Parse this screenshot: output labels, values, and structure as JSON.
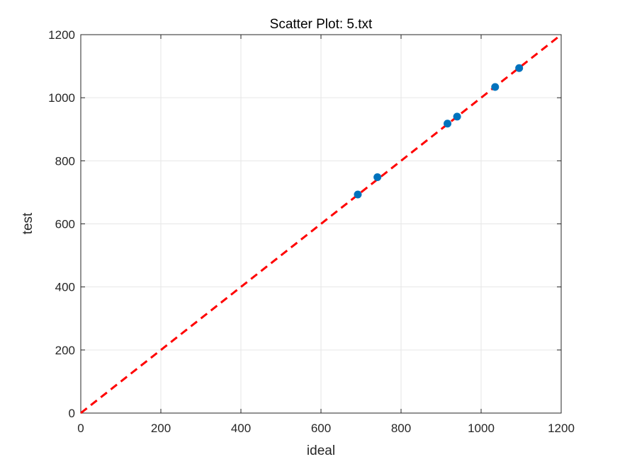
{
  "chart_data": {
    "type": "scatter",
    "title": "Scatter Plot: 5.txt",
    "xlabel": "ideal",
    "ylabel": "test",
    "xlim": [
      0,
      1200
    ],
    "ylim": [
      0,
      1200
    ],
    "xticks": [
      0,
      200,
      400,
      600,
      800,
      1000,
      1200
    ],
    "yticks": [
      0,
      200,
      400,
      600,
      800,
      1000,
      1200
    ],
    "xtick_labels": [
      "0",
      "200",
      "400",
      "600",
      "800",
      "1000",
      "1200"
    ],
    "ytick_labels": [
      "0",
      "200",
      "400",
      "600",
      "800",
      "1000",
      "1200"
    ],
    "grid": true,
    "points": [
      {
        "x": 692,
        "y": 693
      },
      {
        "x": 741,
        "y": 748
      },
      {
        "x": 916,
        "y": 918
      },
      {
        "x": 940,
        "y": 940
      },
      {
        "x": 1035,
        "y": 1034
      },
      {
        "x": 1095,
        "y": 1094
      }
    ],
    "reference_line": {
      "x": [
        0,
        1200
      ],
      "y": [
        0,
        1200
      ],
      "style": "dashed"
    },
    "colors": {
      "points": "#0072BD",
      "reference_line": "#FF0000",
      "grid": "#E6E6E6",
      "axes": "#262626"
    }
  }
}
